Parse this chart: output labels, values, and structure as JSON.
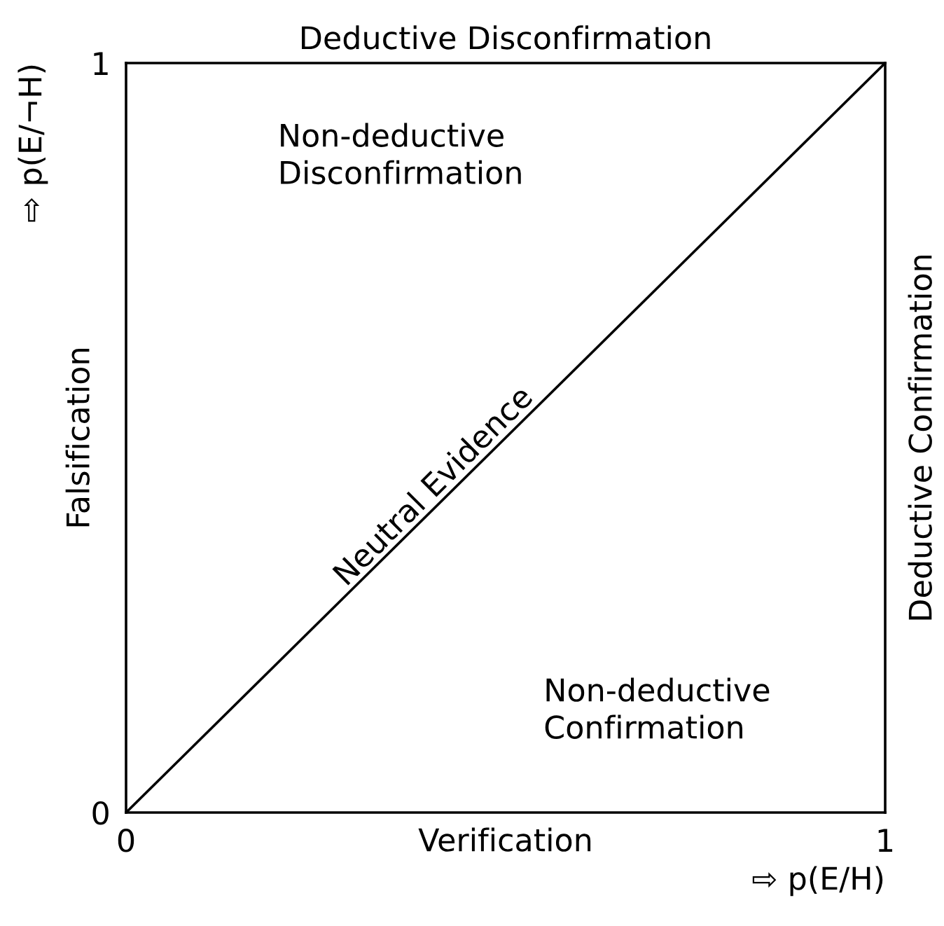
{
  "chart_data": {
    "type": "line",
    "x": [
      0,
      1
    ],
    "series": [
      {
        "color": "#000000",
        "values": [
          0,
          1
        ]
      }
    ],
    "xlim": [
      0,
      1
    ],
    "ylim": [
      0,
      1
    ],
    "xticks": [
      0,
      1
    ],
    "yticks": [
      0,
      1
    ],
    "xlabel": "⇨ p(E/H)",
    "ylabel": "⇨ p(E/¬H)",
    "legend": false,
    "annotations": [
      "Deductive Disconfirmation",
      "Deductive Confirmation",
      "Falsification",
      "Verification",
      "Non-deductive\nDisconfirmation",
      "Non-deductive\nConfirmation",
      {
        "text": "Neutral Evidence",
        "x": 0.42,
        "y": 0.42
      }
    ]
  }
}
